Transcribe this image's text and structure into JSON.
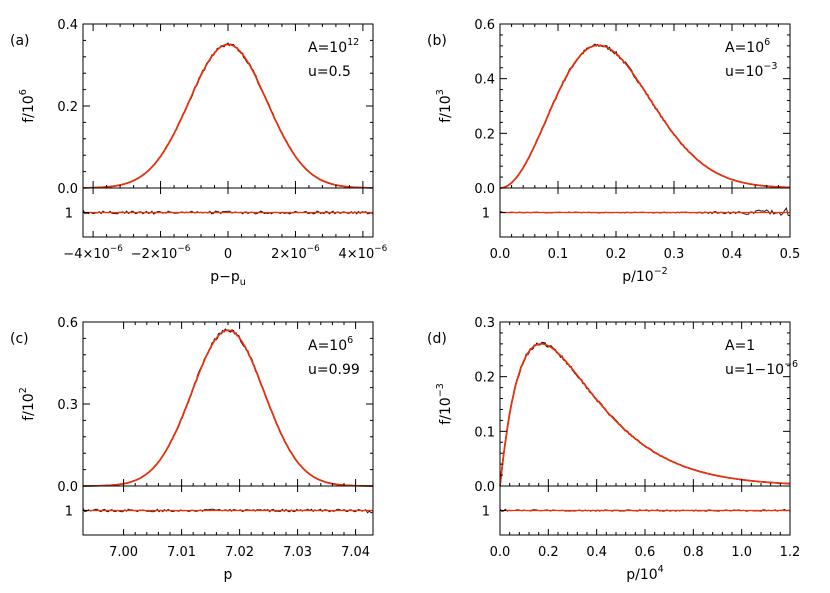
{
  "colors": {
    "data": "#1a1a1a",
    "fit": "#ff2a00",
    "axis": "#000000"
  },
  "chart_data": [
    {
      "type": "line",
      "panel": "(a)",
      "annotation": {
        "A_base": "A=10",
        "A_exp": "12",
        "u_base": "u=0.5",
        "u_exp": ""
      },
      "ylabel": {
        "base": "f/10",
        "exp": "6"
      },
      "xlabel": {
        "base": "p−p",
        "sub": "u"
      },
      "xlim": [
        -4.3e-06,
        4.3e-06
      ],
      "ylim": [
        0,
        0.4
      ],
      "xticks": [
        -4e-06,
        -2e-06,
        0,
        2e-06,
        4e-06
      ],
      "xtick_labels": [
        {
          "base": "−4×10",
          "exp": "−6"
        },
        {
          "base": "−2×10",
          "exp": "−6"
        },
        {
          "base": "0",
          "exp": ""
        },
        {
          "base": "2×10",
          "exp": "−6"
        },
        {
          "base": "4×10",
          "exp": "−6"
        }
      ],
      "yticks": [
        0.0,
        0.2,
        0.4
      ],
      "ytick_labels": [
        "0.0",
        "0.2",
        "0.4"
      ],
      "ratio_tick_label": "1",
      "curve": {
        "kind": "gaussian",
        "amp": 0.35,
        "center": 0,
        "sigma": 1.15e-06,
        "xmin": -4.3e-06,
        "xmax": 4.3e-06
      },
      "noise": {
        "seed": 3,
        "ratio_amp": 0.1
      }
    },
    {
      "type": "line",
      "panel": "(b)",
      "annotation": {
        "A_base": "A=10",
        "A_exp": "6",
        "u_base": "u=10",
        "u_exp": "−3"
      },
      "ylabel": {
        "base": "f/10",
        "exp": "3"
      },
      "xlabel": {
        "base": "p/10",
        "sub": "",
        "exp": "−2"
      },
      "xlim": [
        0,
        0.5
      ],
      "ylim": [
        0,
        0.6
      ],
      "xticks": [
        0,
        0.1,
        0.2,
        0.3,
        0.4,
        0.5
      ],
      "xtick_labels": [
        {
          "base": "0.0",
          "exp": ""
        },
        {
          "base": "0.1",
          "exp": ""
        },
        {
          "base": "0.2",
          "exp": ""
        },
        {
          "base": "0.3",
          "exp": ""
        },
        {
          "base": "0.4",
          "exp": ""
        },
        {
          "base": "0.5",
          "exp": ""
        }
      ],
      "yticks": [
        0.0,
        0.2,
        0.4,
        0.6
      ],
      "ytick_labels": [
        "0.0",
        "0.2",
        "0.4",
        "0.6"
      ],
      "ratio_tick_label": "1",
      "curve": {
        "kind": "maxwell",
        "amp": 0.522,
        "peak": 0.17,
        "xmin": 0,
        "xmax": 0.5
      },
      "noise": {
        "seed": 7,
        "ratio_amp": 0.08,
        "tail_growth": true
      }
    },
    {
      "type": "line",
      "panel": "(c)",
      "annotation": {
        "A_base": "A=10",
        "A_exp": "6",
        "u_base": "u=0.99",
        "u_exp": ""
      },
      "ylabel": {
        "base": "f/10",
        "exp": "2"
      },
      "xlabel": {
        "base": "p",
        "sub": "",
        "exp": ""
      },
      "xlim": [
        6.993,
        7.043
      ],
      "ylim": [
        0,
        0.6
      ],
      "xticks": [
        7.0,
        7.01,
        7.02,
        7.03,
        7.04
      ],
      "xtick_labels": [
        {
          "base": "7.00",
          "exp": ""
        },
        {
          "base": "7.01",
          "exp": ""
        },
        {
          "base": "7.02",
          "exp": ""
        },
        {
          "base": "7.03",
          "exp": ""
        },
        {
          "base": "7.04",
          "exp": ""
        }
      ],
      "yticks": [
        0.0,
        0.3,
        0.6
      ],
      "ytick_labels": [
        "0.0",
        "0.3",
        "0.6"
      ],
      "ratio_tick_label": "1",
      "curve": {
        "kind": "gaussian",
        "amp": 0.57,
        "center": 7.018,
        "sigma": 0.0062,
        "xmin": 6.993,
        "xmax": 7.043
      },
      "noise": {
        "seed": 11,
        "ratio_amp": 0.09
      }
    },
    {
      "type": "line",
      "panel": "(d)",
      "annotation": {
        "A_base": "A=1",
        "A_exp": "",
        "u_base": "u=1−10",
        "u_exp": "−6"
      },
      "ylabel": {
        "base": "f/10",
        "exp": "−3"
      },
      "xlabel": {
        "base": "p/10",
        "sub": "",
        "exp": "4"
      },
      "xlim": [
        0,
        1.2
      ],
      "ylim": [
        0,
        0.3
      ],
      "xticks": [
        0,
        0.2,
        0.4,
        0.6,
        0.8,
        1.0,
        1.2
      ],
      "xtick_labels": [
        {
          "base": "0.0",
          "exp": ""
        },
        {
          "base": "0.2",
          "exp": ""
        },
        {
          "base": "0.4",
          "exp": ""
        },
        {
          "base": "0.6",
          "exp": ""
        },
        {
          "base": "0.8",
          "exp": ""
        },
        {
          "base": "1.0",
          "exp": ""
        },
        {
          "base": "1.2",
          "exp": ""
        }
      ],
      "yticks": [
        0.0,
        0.1,
        0.2,
        0.3
      ],
      "ytick_labels": [
        "0.0",
        "0.1",
        "0.2",
        "0.3"
      ],
      "ratio_tick_label": "1",
      "curve": {
        "kind": "skewed",
        "amp": 0.26,
        "peak": 0.17,
        "xmin": 0,
        "xmax": 1.2
      },
      "noise": {
        "seed": 19,
        "ratio_amp": 0.05
      }
    }
  ]
}
